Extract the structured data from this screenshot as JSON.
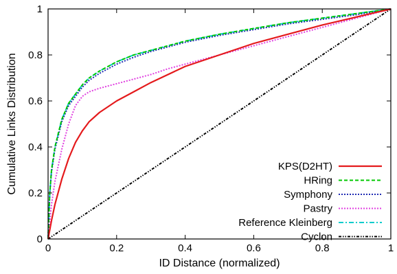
{
  "chart_data": {
    "type": "line",
    "title": "",
    "xlabel": "ID Distance (normalized)",
    "ylabel": "Cumulative Links Distribution",
    "xlim": [
      0,
      1
    ],
    "ylim": [
      0,
      1
    ],
    "x_ticks": [
      0,
      0.2,
      0.4,
      0.6,
      0.8,
      1
    ],
    "y_ticks": [
      0,
      0.2,
      0.4,
      0.6,
      0.8,
      1
    ],
    "x_tick_labels": [
      "0",
      "0.2",
      "0.4",
      "0.6",
      "0.8",
      "1"
    ],
    "y_tick_labels": [
      "0",
      "0.2",
      "0.4",
      "0.6",
      "0.8",
      "1"
    ],
    "grid": false,
    "legend_position": "bottom-right",
    "series": [
      {
        "name": "KPS(D2HT)",
        "color": "#e41a1c",
        "dash": "solid",
        "x": [
          0,
          0.01,
          0.02,
          0.04,
          0.06,
          0.08,
          0.1,
          0.12,
          0.15,
          0.2,
          0.25,
          0.3,
          0.4,
          0.5,
          0.6,
          0.7,
          0.8,
          0.9,
          1.0
        ],
        "y": [
          0,
          0.08,
          0.15,
          0.26,
          0.35,
          0.42,
          0.47,
          0.51,
          0.55,
          0.6,
          0.64,
          0.68,
          0.75,
          0.8,
          0.85,
          0.89,
          0.93,
          0.965,
          1.0
        ]
      },
      {
        "name": "HRing",
        "color": "#00c800",
        "dash": "dash",
        "x": [
          0,
          0.005,
          0.01,
          0.02,
          0.04,
          0.06,
          0.08,
          0.1,
          0.12,
          0.15,
          0.2,
          0.25,
          0.3,
          0.4,
          0.5,
          0.6,
          0.7,
          0.8,
          0.9,
          1.0
        ],
        "y": [
          0,
          0.2,
          0.3,
          0.4,
          0.52,
          0.59,
          0.63,
          0.67,
          0.7,
          0.73,
          0.77,
          0.8,
          0.82,
          0.86,
          0.89,
          0.915,
          0.94,
          0.96,
          0.98,
          1.0
        ]
      },
      {
        "name": "Symphony",
        "color": "#1f2bb3",
        "dash": "dot",
        "x": [
          0,
          0.005,
          0.01,
          0.02,
          0.04,
          0.06,
          0.08,
          0.1,
          0.12,
          0.15,
          0.2,
          0.25,
          0.3,
          0.4,
          0.5,
          0.6,
          0.7,
          0.8,
          0.9,
          1.0
        ],
        "y": [
          0,
          0.2,
          0.29,
          0.39,
          0.51,
          0.58,
          0.62,
          0.66,
          0.69,
          0.72,
          0.76,
          0.79,
          0.815,
          0.855,
          0.885,
          0.91,
          0.935,
          0.955,
          0.975,
          1.0
        ]
      },
      {
        "name": "Pastry",
        "color": "#e040e0",
        "dash": "dot",
        "x": [
          0,
          0.01,
          0.02,
          0.04,
          0.06,
          0.08,
          0.1,
          0.12,
          0.15,
          0.2,
          0.25,
          0.3,
          0.35,
          0.4,
          0.5,
          0.6,
          0.7,
          0.8,
          0.9,
          1.0
        ],
        "y": [
          0,
          0.15,
          0.25,
          0.39,
          0.5,
          0.58,
          0.62,
          0.64,
          0.655,
          0.675,
          0.695,
          0.715,
          0.74,
          0.76,
          0.8,
          0.84,
          0.88,
          0.92,
          0.96,
          1.0
        ]
      },
      {
        "name": "Reference Kleinberg",
        "color": "#00cccc",
        "dash": "dashdot",
        "x": [
          0,
          0.005,
          0.01,
          0.02,
          0.04,
          0.06,
          0.08,
          0.1,
          0.12,
          0.15,
          0.2,
          0.25,
          0.3,
          0.4,
          0.5,
          0.6,
          0.7,
          0.8,
          0.9,
          1.0
        ],
        "y": [
          0,
          0.2,
          0.3,
          0.4,
          0.52,
          0.59,
          0.63,
          0.67,
          0.7,
          0.73,
          0.77,
          0.8,
          0.82,
          0.86,
          0.89,
          0.915,
          0.94,
          0.96,
          0.98,
          1.0
        ]
      },
      {
        "name": "Cyclon",
        "color": "#000000",
        "dash": "dashdotdot",
        "x": [
          0,
          1
        ],
        "y": [
          0,
          1
        ]
      }
    ]
  }
}
